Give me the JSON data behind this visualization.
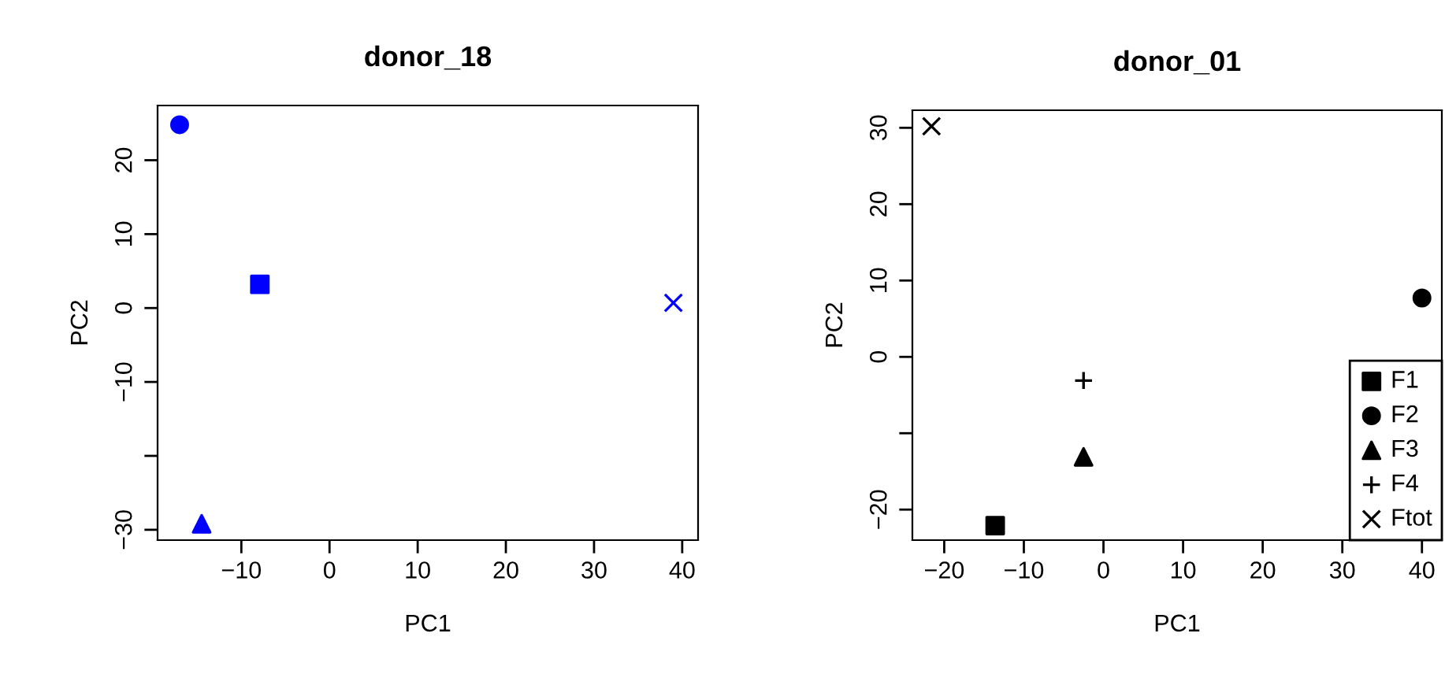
{
  "chart_data": [
    {
      "type": "scatter",
      "title": "donor_18",
      "xlabel": "PC1",
      "ylabel": "PC2",
      "xlim": [
        -19.5,
        41.8
      ],
      "ylim": [
        -31.4,
        27.4
      ],
      "xticks": [
        -10,
        0,
        10,
        20,
        30,
        40
      ],
      "yticks": [
        -30,
        {
          "value": -20,
          "label": null
        },
        -10,
        0,
        10,
        20
      ],
      "grid": false,
      "legend": false,
      "series": [
        {
          "color": "#0000ff",
          "marker": "square",
          "x": [
            -7.9
          ],
          "values": [
            3.2
          ]
        },
        {
          "color": "#0000ff",
          "marker": "circle",
          "x": [
            -17
          ],
          "values": [
            24.8
          ]
        },
        {
          "color": "#0000ff",
          "marker": "triangle",
          "x": [
            -14.5
          ],
          "values": [
            -29.2
          ]
        },
        {
          "color": "#0000ff",
          "marker": "cross",
          "x": [
            39
          ],
          "values": [
            0.7
          ]
        }
      ]
    },
    {
      "type": "scatter",
      "title": "donor_01",
      "xlabel": "PC1",
      "ylabel": "PC2",
      "xlim": [
        -24,
        42.5
      ],
      "ylim": [
        -24,
        32.3
      ],
      "xticks": [
        -20,
        -10,
        0,
        10,
        20,
        30,
        40
      ],
      "yticks": [
        -20,
        {
          "value": -10,
          "label": null
        },
        0,
        10,
        20,
        30
      ],
      "grid": false,
      "legend": "bottom right",
      "series": [
        {
          "name": "F1",
          "color": "#000000",
          "marker": "square",
          "x": [
            -13.6
          ],
          "values": [
            -22.1
          ]
        },
        {
          "name": "F2",
          "color": "#000000",
          "marker": "circle",
          "x": [
            40
          ],
          "values": [
            7.7
          ]
        },
        {
          "name": "F3",
          "color": "#000000",
          "marker": "triangle",
          "x": [
            -2.5
          ],
          "values": [
            -13.1
          ]
        },
        {
          "name": "F4",
          "color": "#000000",
          "marker": "plus",
          "x": [
            -2.5
          ],
          "values": [
            -3.1
          ]
        },
        {
          "name": "Ftot",
          "color": "#000000",
          "marker": "cross",
          "x": [
            -21.6
          ],
          "values": [
            30.2
          ]
        }
      ]
    }
  ]
}
